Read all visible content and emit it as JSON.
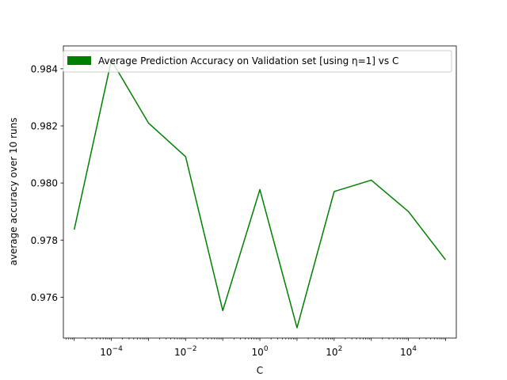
{
  "chart_data": {
    "type": "line",
    "xscale": "log",
    "x": [
      1e-05,
      0.0001,
      0.001,
      0.01,
      0.1,
      1,
      10,
      100,
      1000,
      10000,
      100000
    ],
    "series": [
      {
        "name": "Average Prediction Accuracy on Validation set [using η=1] vs C",
        "color": "#008000",
        "values": [
          0.97837,
          0.9843,
          0.9821,
          0.98092,
          0.97553,
          0.97977,
          0.97493,
          0.9797,
          0.9801,
          0.979,
          0.97731
        ]
      }
    ],
    "xlabel": "C",
    "ylabel": "average accuracy over 10 runs",
    "xlim": [
      5.1e-06,
      195000
    ],
    "ylim": [
      0.97457,
      0.9848
    ],
    "xticks": [
      {
        "value": 0.0001,
        "base": "10",
        "exp": "−4"
      },
      {
        "value": 0.01,
        "base": "10",
        "exp": "−2"
      },
      {
        "value": 1,
        "base": "10",
        "exp": "0"
      },
      {
        "value": 100,
        "base": "10",
        "exp": "2"
      },
      {
        "value": 10000,
        "base": "10",
        "exp": "4"
      }
    ],
    "yticks": [
      {
        "value": 0.976,
        "label": "0.976"
      },
      {
        "value": 0.978,
        "label": "0.978"
      },
      {
        "value": 0.98,
        "label": "0.980"
      },
      {
        "value": 0.982,
        "label": "0.982"
      },
      {
        "value": 0.984,
        "label": "0.984"
      }
    ],
    "grid": false,
    "legend_position": "top-right"
  }
}
